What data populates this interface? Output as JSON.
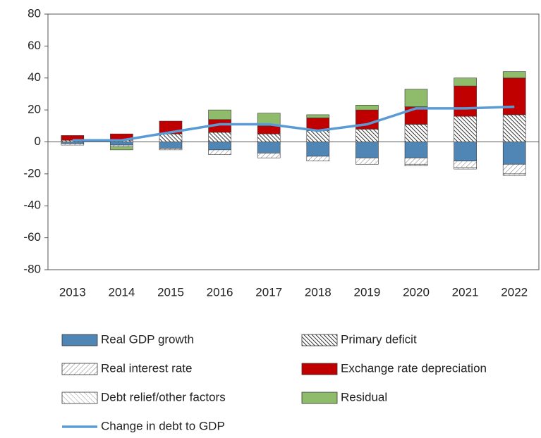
{
  "chart_data": {
    "type": "bar",
    "stacked": true,
    "categories": [
      "2013",
      "2014",
      "2015",
      "2016",
      "2017",
      "2018",
      "2019",
      "2020",
      "2021",
      "2022"
    ],
    "ylim": [
      -80,
      80
    ],
    "yticks": [
      -80,
      -60,
      -40,
      -20,
      0,
      20,
      40,
      60,
      80
    ],
    "grid": false,
    "series": [
      {
        "name": "Real GDP growth",
        "color": "#4f86b5",
        "values": [
          -1,
          -2,
          -4,
          -5,
          -7,
          -9,
          -10,
          -10,
          -12,
          -14
        ]
      },
      {
        "name": "Primary deficit",
        "color": "#ffffff",
        "hatch": "dense",
        "values": [
          1,
          1,
          5,
          6,
          5,
          7,
          8,
          11,
          16,
          17
        ]
      },
      {
        "name": "Real interest rate",
        "color": "#ffffff",
        "hatch": "light-forward",
        "values": [
          -1,
          -1,
          -1,
          -3,
          -3,
          -3,
          -4,
          -4,
          -4,
          -6
        ]
      },
      {
        "name": "Exchange rate depreciation",
        "color": "#c00000",
        "values": [
          3,
          4,
          8,
          8,
          5,
          8,
          12,
          11,
          19,
          23
        ]
      },
      {
        "name": "Debt relief/other factors",
        "color": "#ffffff",
        "hatch": "light-back",
        "values": [
          0,
          0,
          0,
          0,
          0,
          0,
          0,
          -1,
          -1,
          -1
        ]
      },
      {
        "name": "Residual",
        "color": "#8fbc6a",
        "values": [
          0,
          -2,
          0,
          6,
          8,
          2,
          3,
          11,
          5,
          4
        ]
      },
      {
        "name": "Change in debt to GDP",
        "type": "line",
        "color": "#5b9bd5",
        "values": [
          1,
          1,
          6,
          11,
          11,
          7,
          11,
          21,
          21,
          22
        ]
      }
    ]
  }
}
